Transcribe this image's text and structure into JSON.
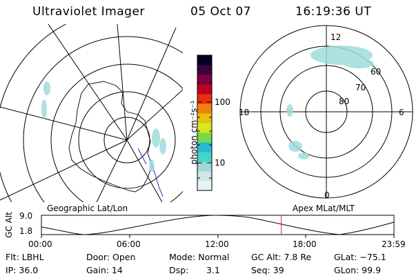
{
  "header": {
    "instrument": "Ultraviolet Imager",
    "date": "05 Oct 07",
    "time": "16:19:36 UT"
  },
  "polar_plot": {
    "mlt_labels": [
      "12",
      "18",
      "6",
      "0"
    ],
    "mlat_labels": [
      "60",
      "70",
      "80"
    ]
  },
  "colorbar": {
    "unit_label": "photon cm⁻²s⁻¹",
    "tick_labels": [
      "100",
      "10"
    ],
    "colors": [
      "#e8f4f4",
      "#cde6e6",
      "#9fd8d8",
      "#3fd7c5",
      "#2ab7d8",
      "#78d84a",
      "#d8e820",
      "#e8c010",
      "#f08010",
      "#e83010",
      "#c00020",
      "#800040",
      "#400040",
      "#000020"
    ]
  },
  "map_labels": {
    "left": "Geographic Lat/Lon",
    "right": "Apex MLat/MLT"
  },
  "timeline": {
    "ylabel": "GC Alt",
    "ymax": "9.0",
    "ymin": "1.8",
    "ticks": [
      "00:00",
      "06:00",
      "12:00",
      "18:00",
      "23:59"
    ],
    "current_hour": 16.33
  },
  "info": {
    "row1": {
      "flt": "Flt: LBHL",
      "door": "Door: Open",
      "mode": "Mode: Normal",
      "gc_alt": "GC Alt: 7.8 Re",
      "glat": "GLat: −75.1"
    },
    "row2": {
      "ip": "IP: 36.0",
      "gain": "Gain: 14",
      "dsp_label": "Dsp:",
      "dsp_value": "3.1",
      "seq": "Seq: 39",
      "glon": "GLon: 99.9"
    }
  }
}
